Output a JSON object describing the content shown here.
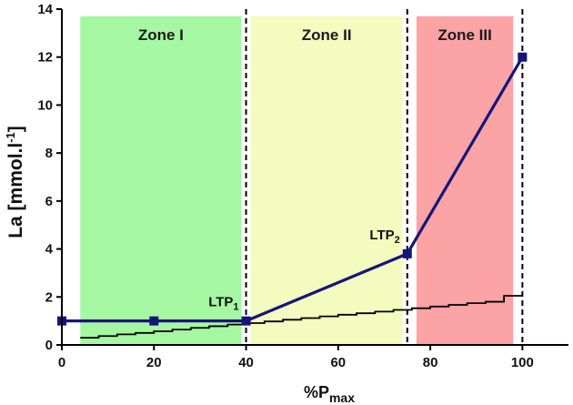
{
  "chart_data": {
    "type": "line",
    "xlabel": "%P",
    "xlabel_sub": "max",
    "ylabel": "La [mmol.l",
    "ylabel_sup": "-1",
    "ylabel_end": "]",
    "xlim": [
      0,
      110
    ],
    "ylim": [
      0,
      14
    ],
    "x_ticks": [
      0,
      20,
      40,
      60,
      80,
      100
    ],
    "y_ticks": [
      0,
      2,
      4,
      6,
      8,
      10,
      12,
      14
    ],
    "zones": [
      {
        "label": "Zone I",
        "x_start": 4,
        "x_end": 39,
        "color": "#a6f7a2"
      },
      {
        "label": "Zone II",
        "x_start": 41,
        "x_end": 74,
        "color": "#f3fbbf"
      },
      {
        "label": "Zone III",
        "x_start": 77,
        "x_end": 98,
        "color": "#fba3a5"
      }
    ],
    "dashed_lines_x": [
      40,
      75,
      100
    ],
    "series": [
      {
        "name": "La",
        "color": "#14157a",
        "x": [
          0,
          20,
          40,
          75,
          100
        ],
        "y": [
          1.0,
          1.0,
          1.0,
          3.8,
          12.0
        ]
      }
    ],
    "step_series": {
      "name": "step",
      "color": "#000000",
      "steps": [
        [
          4,
          8,
          0.3
        ],
        [
          8,
          12,
          0.37
        ],
        [
          12,
          16,
          0.44
        ],
        [
          16,
          20,
          0.5
        ],
        [
          20,
          24,
          0.57
        ],
        [
          24,
          28,
          0.64
        ],
        [
          28,
          32,
          0.71
        ],
        [
          32,
          36,
          0.78
        ],
        [
          36,
          40,
          0.85
        ],
        [
          40,
          44,
          0.91
        ],
        [
          44,
          48,
          0.98
        ],
        [
          48,
          52,
          1.05
        ],
        [
          52,
          56,
          1.12
        ],
        [
          56,
          60,
          1.19
        ],
        [
          60,
          64,
          1.26
        ],
        [
          64,
          68,
          1.32
        ],
        [
          68,
          72,
          1.39
        ],
        [
          72,
          76,
          1.46
        ],
        [
          76,
          80,
          1.53
        ],
        [
          80,
          84,
          1.6
        ],
        [
          84,
          88,
          1.67
        ],
        [
          88,
          92,
          1.74
        ],
        [
          92,
          96,
          1.8
        ],
        [
          96,
          100,
          2.05
        ]
      ]
    },
    "annotations": [
      {
        "text": "LTP",
        "sub": "1",
        "x": 40,
        "y": 1.0
      },
      {
        "text": "LTP",
        "sub": "2",
        "x": 75,
        "y": 3.8
      }
    ]
  }
}
